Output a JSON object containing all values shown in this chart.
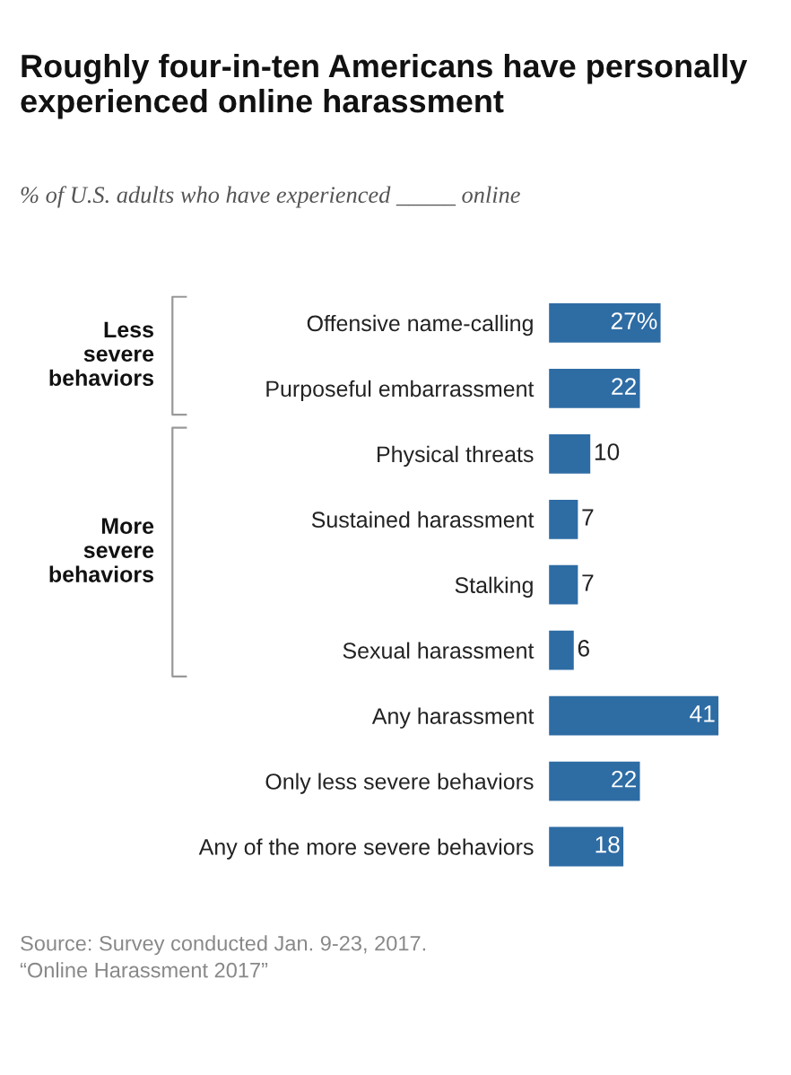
{
  "chart_data": {
    "type": "bar",
    "orientation": "horizontal",
    "title": "Roughly four-in-ten Americans have personally experienced online harassment",
    "subtitle": "% of U.S. adults who have experienced _____ online",
    "categories": [
      "Offensive name-calling",
      "Purposeful embarrassment",
      "Physical threats",
      "Sustained harassment",
      "Stalking",
      "Sexual harassment",
      "Any harassment",
      "Only less severe behaviors",
      "Any of the more severe behaviors"
    ],
    "values": [
      27,
      22,
      10,
      7,
      7,
      6,
      41,
      22,
      18
    ],
    "value_labels": [
      "27%",
      "22",
      "10",
      "7",
      "7",
      "6",
      "41",
      "22",
      "18"
    ],
    "color": "#2e6ca4",
    "annotations": [
      "Less severe behaviors",
      "More severe behaviors",
      "Source: Survey conducted Jan. 9-23, 2017.",
      "“Online Harassment 2017”"
    ],
    "grid": false,
    "legend": false
  }
}
